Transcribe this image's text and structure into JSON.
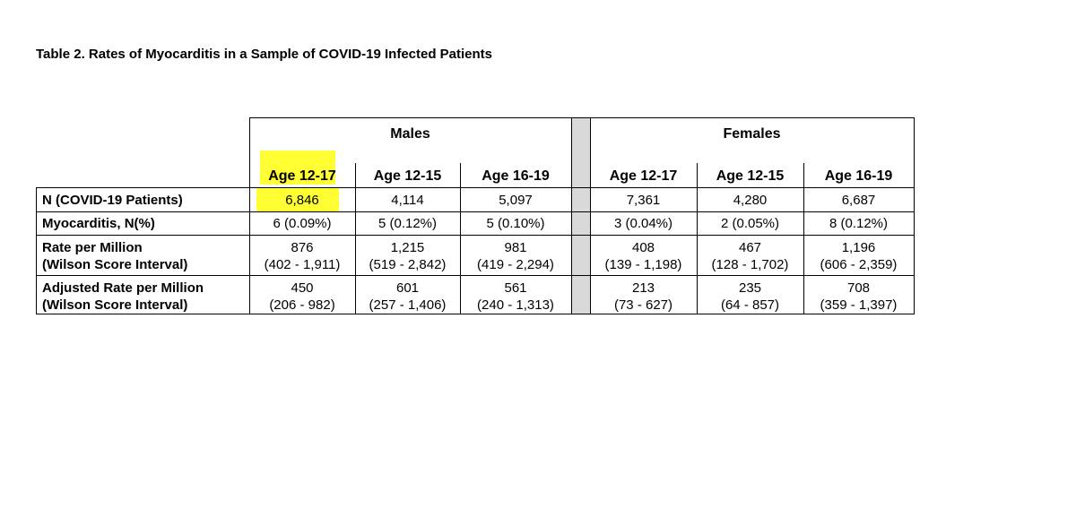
{
  "caption": "Table 2. Rates of Myocarditis in a Sample of COVID-19 Infected Patients",
  "groups": {
    "males": "Males",
    "females": "Females"
  },
  "columns": [
    "Age 12-17",
    "Age 12-15",
    "Age 16-19",
    "Age 12-17",
    "Age 12-15",
    "Age 16-19"
  ],
  "rows": [
    {
      "label": "N (COVID-19 Patients)",
      "label2": "",
      "cells": [
        {
          "v": "6,846",
          "ci": ""
        },
        {
          "v": "4,114",
          "ci": ""
        },
        {
          "v": "5,097",
          "ci": ""
        },
        {
          "v": "7,361",
          "ci": ""
        },
        {
          "v": "4,280",
          "ci": ""
        },
        {
          "v": "6,687",
          "ci": ""
        }
      ]
    },
    {
      "label": "Myocarditis, N(%)",
      "label2": "",
      "cells": [
        {
          "v": "6 (0.09%)",
          "ci": ""
        },
        {
          "v": "5 (0.12%)",
          "ci": ""
        },
        {
          "v": "5 (0.10%)",
          "ci": ""
        },
        {
          "v": "3 (0.04%)",
          "ci": ""
        },
        {
          "v": "2 (0.05%)",
          "ci": ""
        },
        {
          "v": "8 (0.12%)",
          "ci": ""
        }
      ]
    },
    {
      "label": "Rate per Million",
      "label2": "(Wilson Score Interval)",
      "cells": [
        {
          "v": "876",
          "ci": "(402 - 1,911)"
        },
        {
          "v": "1,215",
          "ci": "(519 - 2,842)"
        },
        {
          "v": "981",
          "ci": "(419 - 2,294)"
        },
        {
          "v": "408",
          "ci": "(139 - 1,198)"
        },
        {
          "v": "467",
          "ci": "(128 - 1,702)"
        },
        {
          "v": "1,196",
          "ci": "(606 - 2,359)"
        }
      ]
    },
    {
      "label": "Adjusted Rate per Million",
      "label2": "(Wilson Score Interval)",
      "cells": [
        {
          "v": "450",
          "ci": "(206 - 982)"
        },
        {
          "v": "601",
          "ci": "(257 - 1,406)"
        },
        {
          "v": "561",
          "ci": "(240 - 1,313)"
        },
        {
          "v": "213",
          "ci": "(73 - 627)"
        },
        {
          "v": "235",
          "ci": "(64 - 857)"
        },
        {
          "v": "708",
          "ci": "(359 - 1,397)"
        }
      ]
    }
  ],
  "highlight_color": "#ffff33"
}
